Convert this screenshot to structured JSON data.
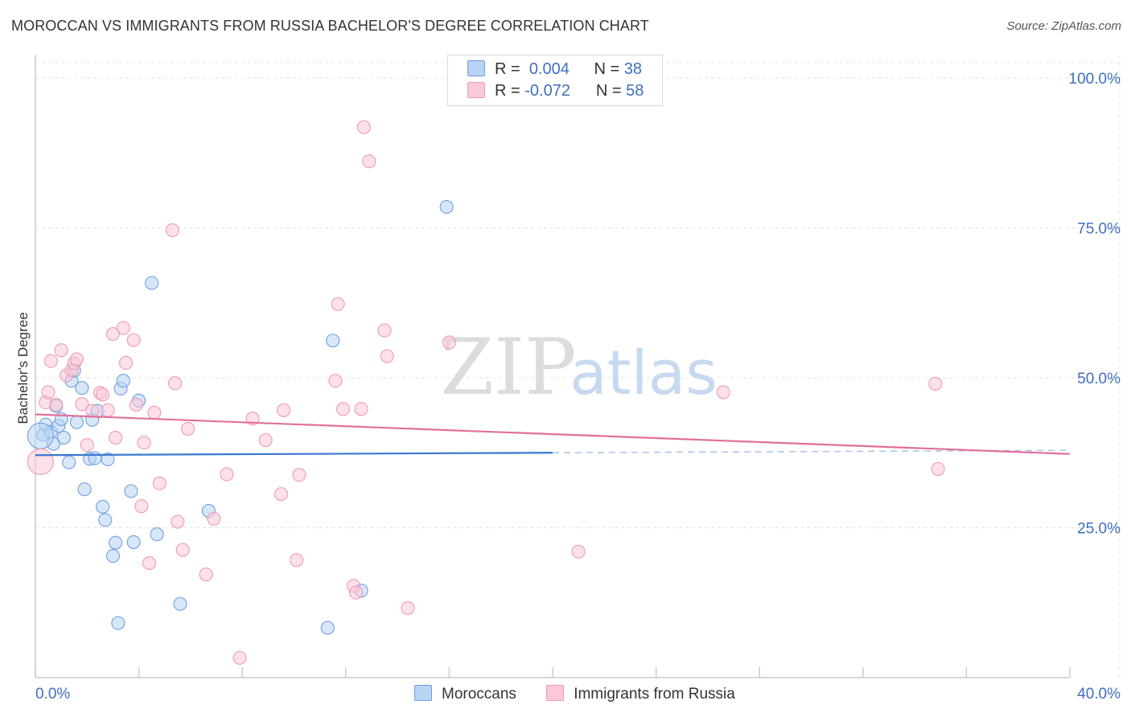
{
  "title": "MOROCCAN VS IMMIGRANTS FROM RUSSIA BACHELOR'S DEGREE CORRELATION CHART",
  "source": "Source: ZipAtlas.com",
  "watermark": {
    "zip": "ZIP",
    "atlas": "atlas"
  },
  "legend": {
    "r_label": "R =",
    "n_label": "N =",
    "rows": [
      {
        "r": "0.004",
        "n": "38",
        "color": "#a9c8f0"
      },
      {
        "r": "-0.072",
        "n": "58",
        "color": "#f7b7cb"
      }
    ]
  },
  "bottom_legend": [
    {
      "label": "Moroccans",
      "color": "#a9c8f0"
    },
    {
      "label": "Immigrants from Russia",
      "color": "#f7b7cb"
    }
  ],
  "chart_data": {
    "type": "scatter",
    "title": "MOROCCAN VS IMMIGRANTS FROM RUSSIA BACHELOR'S DEGREE CORRELATION CHART",
    "xlabel": "",
    "ylabel": "Bachelor's Degree",
    "xlim": [
      0,
      40
    ],
    "ylim": [
      0,
      100
    ],
    "x_tick_labels": [
      "0.0%",
      "40.0%"
    ],
    "y_ticks": [
      25,
      50,
      75,
      100
    ],
    "y_tick_labels": [
      "25.0%",
      "50.0%",
      "75.0%",
      "100.0%"
    ],
    "grid": true,
    "series": [
      {
        "name": "Moroccans",
        "color": "#6f9fdf",
        "fill": "#b8d3f3",
        "trend": {
          "x": [
            0,
            20
          ],
          "y": [
            37.1,
            37.5
          ],
          "color": "#3a78d0",
          "dashed_extension_to": 40
        },
        "points": [
          [
            0.3,
            40.5
          ],
          [
            0.4,
            42.2
          ],
          [
            0.6,
            41.0
          ],
          [
            0.7,
            39.0
          ],
          [
            0.8,
            45.3
          ],
          [
            0.9,
            42.0
          ],
          [
            1.0,
            43.1
          ],
          [
            1.1,
            40.0
          ],
          [
            1.3,
            35.9
          ],
          [
            1.4,
            49.5
          ],
          [
            1.5,
            51.2
          ],
          [
            1.6,
            42.6
          ],
          [
            1.8,
            48.3
          ],
          [
            1.9,
            31.4
          ],
          [
            2.1,
            36.5
          ],
          [
            2.2,
            43.0
          ],
          [
            2.3,
            36.6
          ],
          [
            2.4,
            44.5
          ],
          [
            2.6,
            28.5
          ],
          [
            2.7,
            26.3
          ],
          [
            2.8,
            36.4
          ],
          [
            3.0,
            20.3
          ],
          [
            3.1,
            22.5
          ],
          [
            3.2,
            9.1
          ],
          [
            3.3,
            48.2
          ],
          [
            3.4,
            49.5
          ],
          [
            3.7,
            31.1
          ],
          [
            3.8,
            22.6
          ],
          [
            4.0,
            46.2
          ],
          [
            4.5,
            65.8
          ],
          [
            4.7,
            23.9
          ],
          [
            5.6,
            12.3
          ],
          [
            6.7,
            27.8
          ],
          [
            11.3,
            8.3
          ],
          [
            11.5,
            56.2
          ],
          [
            12.6,
            14.5
          ],
          [
            15.9,
            78.5
          ],
          [
            0.2,
            40.3
          ]
        ]
      },
      {
        "name": "Immigrants from Russia",
        "color": "#ef9ab4",
        "fill": "#f9c9d7",
        "trend": {
          "x": [
            0,
            40
          ],
          "y": [
            43.9,
            37.3
          ],
          "color": "#e0709a"
        },
        "points": [
          [
            0.2,
            36.0
          ],
          [
            0.4,
            45.9
          ],
          [
            0.5,
            47.6
          ],
          [
            0.6,
            52.8
          ],
          [
            0.8,
            45.5
          ],
          [
            1.0,
            54.6
          ],
          [
            1.2,
            50.4
          ],
          [
            1.4,
            51.3
          ],
          [
            1.5,
            52.4
          ],
          [
            1.6,
            53.1
          ],
          [
            1.8,
            45.6
          ],
          [
            2.0,
            38.8
          ],
          [
            2.2,
            44.5
          ],
          [
            2.5,
            47.5
          ],
          [
            2.6,
            47.2
          ],
          [
            2.8,
            44.6
          ],
          [
            3.0,
            57.3
          ],
          [
            3.1,
            40.0
          ],
          [
            3.4,
            58.3
          ],
          [
            3.5,
            52.5
          ],
          [
            3.8,
            56.3
          ],
          [
            3.9,
            45.5
          ],
          [
            4.1,
            28.6
          ],
          [
            4.2,
            39.2
          ],
          [
            4.4,
            19.1
          ],
          [
            4.6,
            44.2
          ],
          [
            4.8,
            32.4
          ],
          [
            5.3,
            74.6
          ],
          [
            5.4,
            49.1
          ],
          [
            5.5,
            26.0
          ],
          [
            5.7,
            21.3
          ],
          [
            5.9,
            41.5
          ],
          [
            6.6,
            17.2
          ],
          [
            6.9,
            26.5
          ],
          [
            7.4,
            33.9
          ],
          [
            7.9,
            3.3
          ],
          [
            8.4,
            43.2
          ],
          [
            8.9,
            39.6
          ],
          [
            9.5,
            30.6
          ],
          [
            9.6,
            44.6
          ],
          [
            10.1,
            19.6
          ],
          [
            10.2,
            33.8
          ],
          [
            11.6,
            49.5
          ],
          [
            11.7,
            62.3
          ],
          [
            11.9,
            44.8
          ],
          [
            12.3,
            15.3
          ],
          [
            12.4,
            14.2
          ],
          [
            12.6,
            44.8
          ],
          [
            12.9,
            86.1
          ],
          [
            12.7,
            91.8
          ],
          [
            13.5,
            57.9
          ],
          [
            13.6,
            53.6
          ],
          [
            14.4,
            11.6
          ],
          [
            16.0,
            55.9
          ],
          [
            21.0,
            21.0
          ],
          [
            26.6,
            47.6
          ],
          [
            34.8,
            49.0
          ],
          [
            34.9,
            34.8
          ]
        ]
      }
    ]
  }
}
